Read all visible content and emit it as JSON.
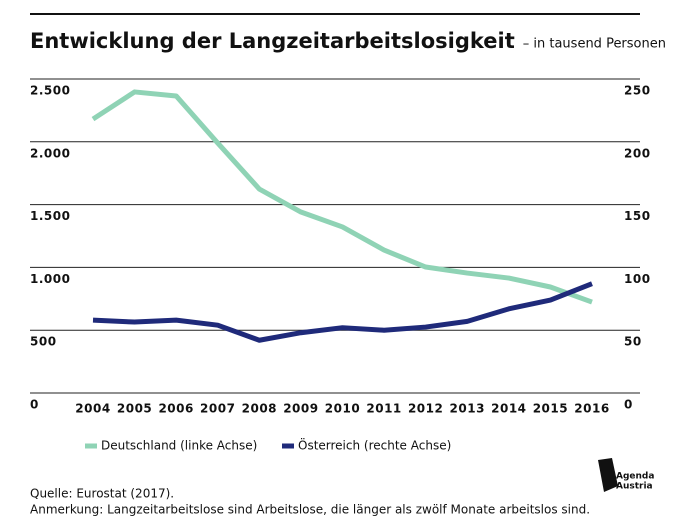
{
  "chart_data": {
    "type": "line",
    "title": "Entwicklung der Langzeitarbeitslosigkeit",
    "subtitle": "– in tausend Personen",
    "categories": [
      "2004",
      "2005",
      "2006",
      "2007",
      "2008",
      "2009",
      "2010",
      "2011",
      "2012",
      "2013",
      "2014",
      "2015",
      "2016"
    ],
    "series": [
      {
        "name": "Deutschland (linke Achse)",
        "color": "#8fd3b5",
        "values": [
          2181,
          2397,
          2365,
          1990,
          1624,
          1441,
          1322,
          1138,
          1003,
          955,
          915,
          844,
          724
        ]
      },
      {
        "name": "Österreich (rechte Achse)",
        "color": "#1f2a7a",
        "axis": "y2",
        "values": [
          58,
          56.5,
          58,
          54,
          42,
          48,
          52,
          50,
          52.5,
          57,
          67,
          74,
          87
        ]
      }
    ],
    "ylim": [
      0,
      2500
    ],
    "yticks": [
      0,
      500,
      {
        "value": 1000,
        "label": "1.000"
      },
      {
        "value": 1500,
        "label": "1.500"
      },
      {
        "value": 2000,
        "label": "2.000"
      },
      {
        "value": 2500,
        "label": "2.500"
      }
    ],
    "y2lim": [
      0,
      250
    ],
    "y2ticks": [
      0,
      50,
      100,
      150,
      200,
      250
    ],
    "grid": true,
    "legend": "bottom",
    "source": "Quelle: Eurostat (2017).",
    "note": "Anmerkung: Langzeitarbeitslose sind Arbeitslose, die länger als zwölf Monate arbeitslos sind.",
    "logo": [
      "Agenda",
      "Austria"
    ]
  }
}
